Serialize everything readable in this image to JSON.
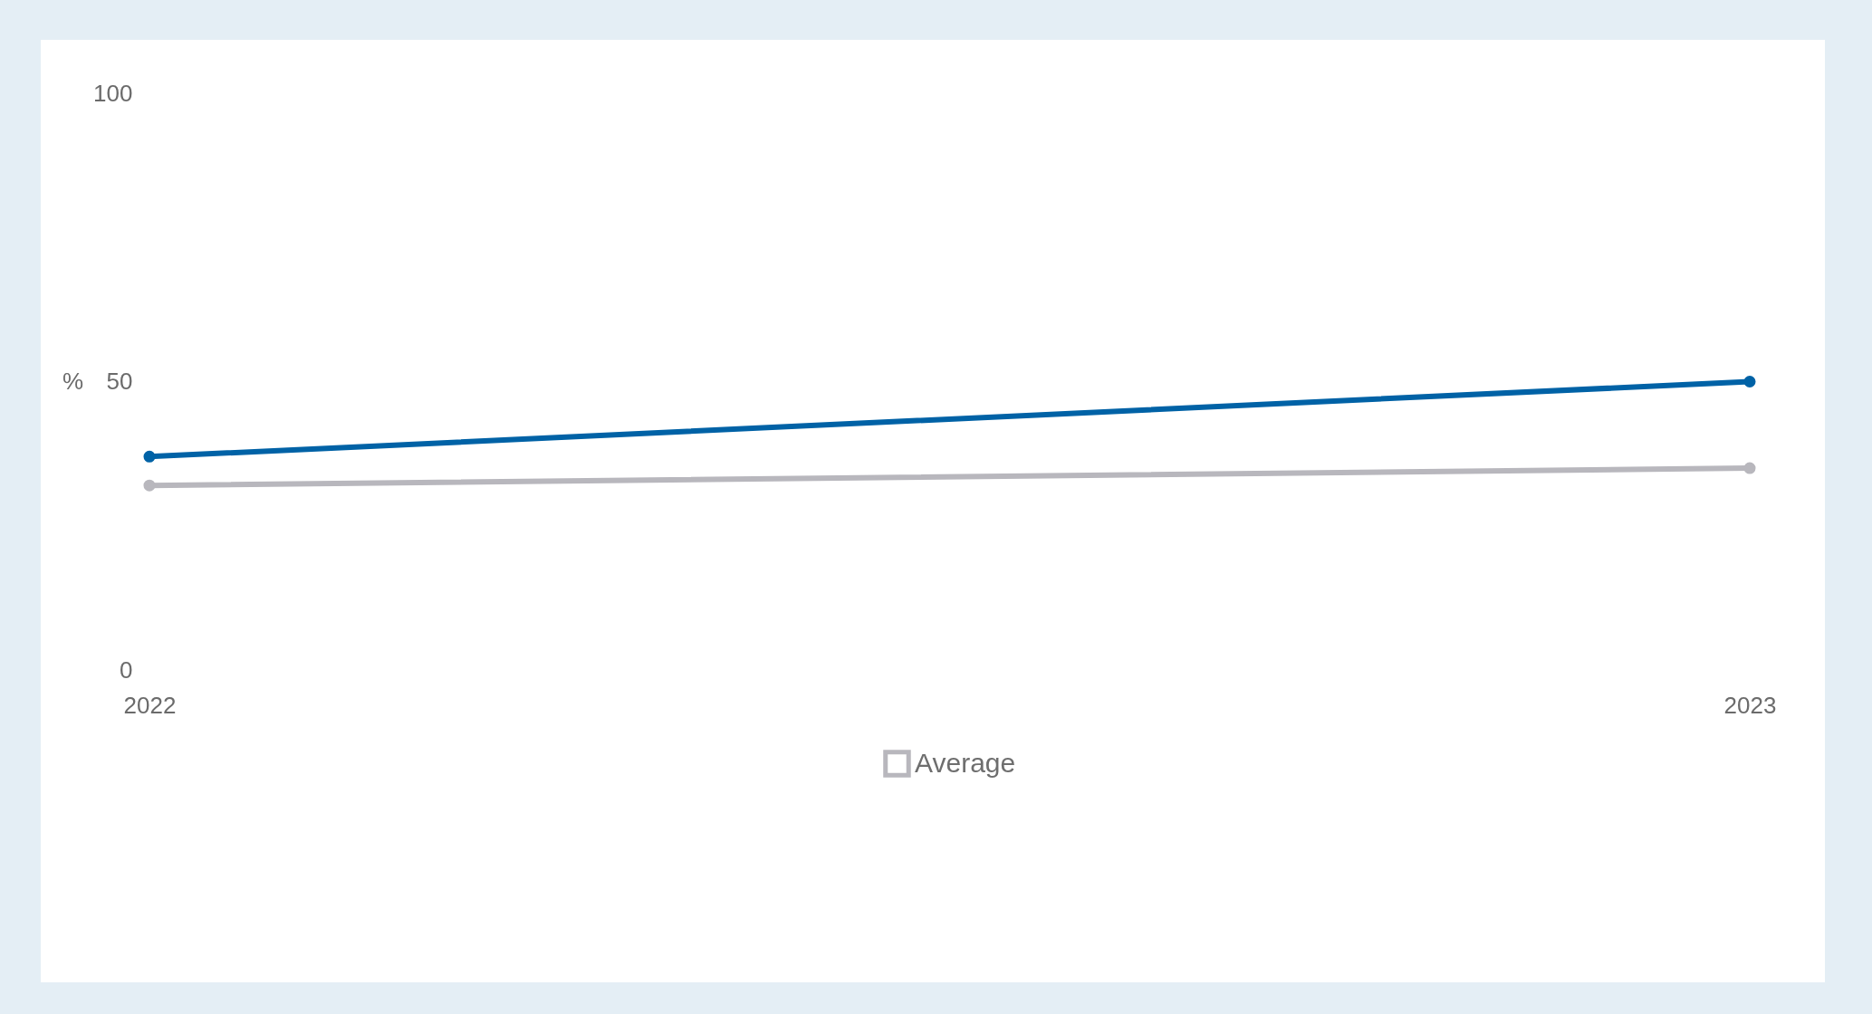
{
  "chart_data": {
    "type": "line",
    "ylabel": "%",
    "categories": [
      "2022",
      "2023"
    ],
    "series": [
      {
        "color": "#0062a6",
        "values": [
          37,
          50
        ]
      },
      {
        "name": "Average",
        "color": "#b8b7bd",
        "values": [
          32,
          35
        ]
      }
    ],
    "ylim": [
      0,
      100
    ],
    "yticks": [
      0,
      50,
      100
    ],
    "grid": false,
    "legend": "bottom",
    "marker": "circle"
  }
}
